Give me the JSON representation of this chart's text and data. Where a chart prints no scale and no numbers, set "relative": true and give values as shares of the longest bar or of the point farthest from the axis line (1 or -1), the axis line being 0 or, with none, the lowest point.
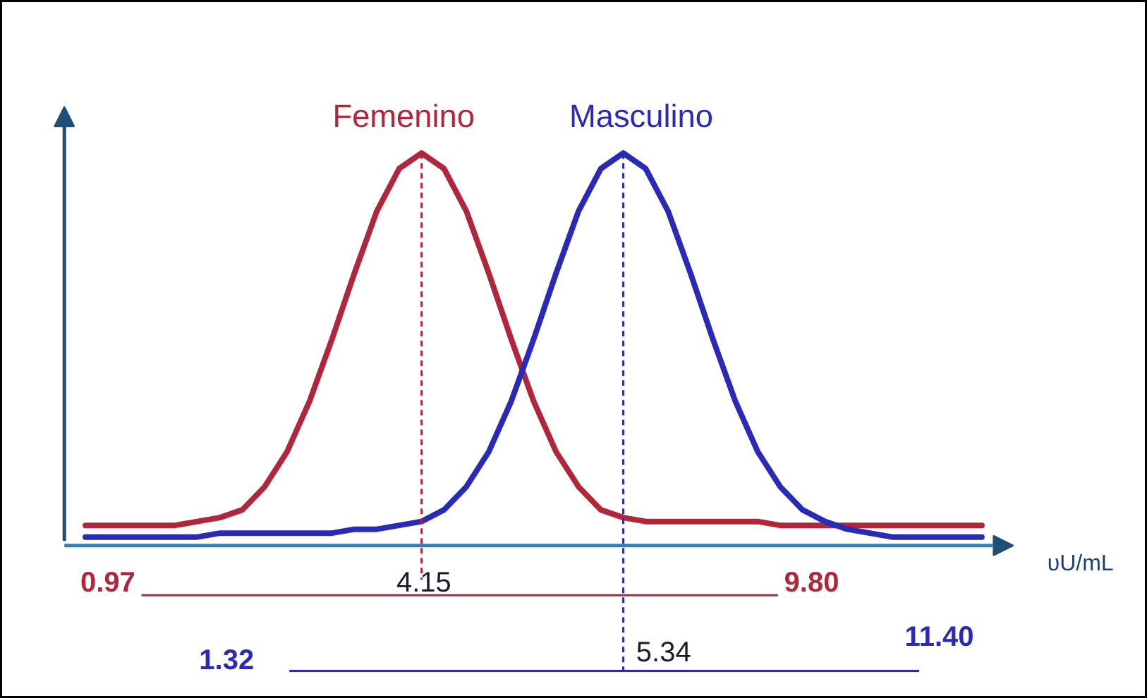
{
  "chart_data": {
    "type": "line",
    "relative": true,
    "xlabel": "υU/mL",
    "grid": false,
    "legend": false,
    "marker": "none",
    "line_style": "solid",
    "categories": [
      null,
      null,
      null,
      null,
      null,
      null,
      null,
      null,
      null,
      null,
      null,
      null,
      null,
      null,
      null,
      null,
      null,
      null,
      null,
      null,
      null,
      null,
      null,
      null,
      null,
      null,
      null,
      null,
      null,
      null,
      null,
      null,
      null,
      null,
      null,
      null,
      null,
      null,
      null,
      null,
      null
    ],
    "series": [
      {
        "name": "Femenino",
        "color": "#b0263a",
        "values": [
          0.04,
          0.04,
          0.04,
          0.04,
          0.04,
          0.05,
          0.06,
          0.08,
          0.14,
          0.23,
          0.36,
          0.52,
          0.69,
          0.85,
          0.96,
          1,
          0.96,
          0.85,
          0.69,
          0.52,
          0.36,
          0.23,
          0.14,
          0.08,
          0.06,
          0.05,
          0.05,
          0.05,
          0.05,
          0.05,
          0.05,
          0.04,
          0.04,
          0.04,
          0.04,
          0.04,
          0.04,
          0.04,
          0.04,
          0.04,
          0.04
        ]
      },
      {
        "name": "Masculino",
        "color": "#2a2ab8",
        "values": [
          0.01,
          0.01,
          0.01,
          0.01,
          0.01,
          0.01,
          0.02,
          0.02,
          0.02,
          0.02,
          0.02,
          0.02,
          0.03,
          0.03,
          0.04,
          0.05,
          0.08,
          0.14,
          0.23,
          0.36,
          0.52,
          0.69,
          0.85,
          0.96,
          1,
          0.96,
          0.85,
          0.69,
          0.52,
          0.36,
          0.23,
          0.14,
          0.08,
          0.05,
          0.03,
          0.02,
          0.01,
          0.01,
          0.01,
          0.01,
          0.01
        ]
      }
    ],
    "annotations": [
      "0.97",
      "4.15",
      "9.80",
      "1.32",
      "5.34",
      "11.40"
    ]
  }
}
